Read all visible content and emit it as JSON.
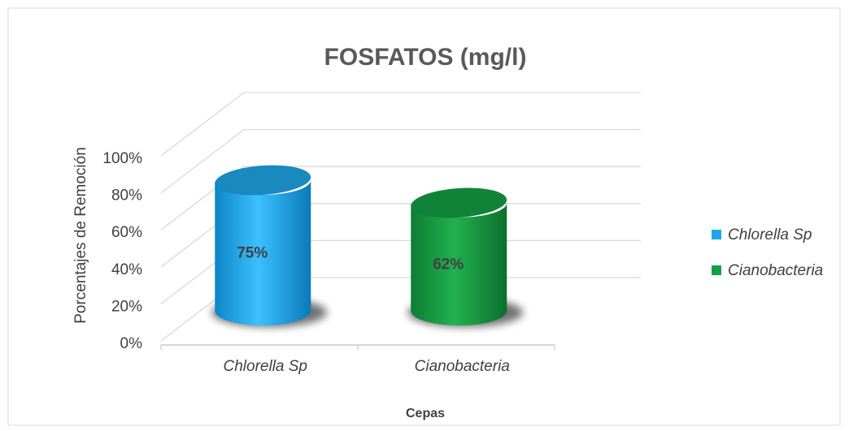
{
  "chart_data": {
    "type": "bar3d",
    "title": "FOSFATOS  (mg/l)",
    "y_label": "Porcentajes de Remoción",
    "x_label": "Cepas",
    "categories": [
      "Chlorella Sp",
      "Cianobacteria"
    ],
    "series": [
      {
        "name": "Chlorella Sp",
        "color": "#1ea7e8",
        "values": [
          75,
          null
        ],
        "value_labels": [
          "75%",
          null
        ]
      },
      {
        "name": "Cianobacteria",
        "color": "#14a046",
        "values": [
          null,
          62
        ],
        "value_labels": [
          null,
          "62%"
        ]
      }
    ],
    "ylim": [
      0,
      100
    ],
    "yticks": [
      {
        "value": 0,
        "label": "0%"
      },
      {
        "value": 20,
        "label": "20%"
      },
      {
        "value": 40,
        "label": "40%"
      },
      {
        "value": 60,
        "label": "60%"
      },
      {
        "value": 80,
        "label": "80%"
      },
      {
        "value": 100,
        "label": "100%"
      }
    ],
    "grid": true,
    "legend": "right"
  }
}
